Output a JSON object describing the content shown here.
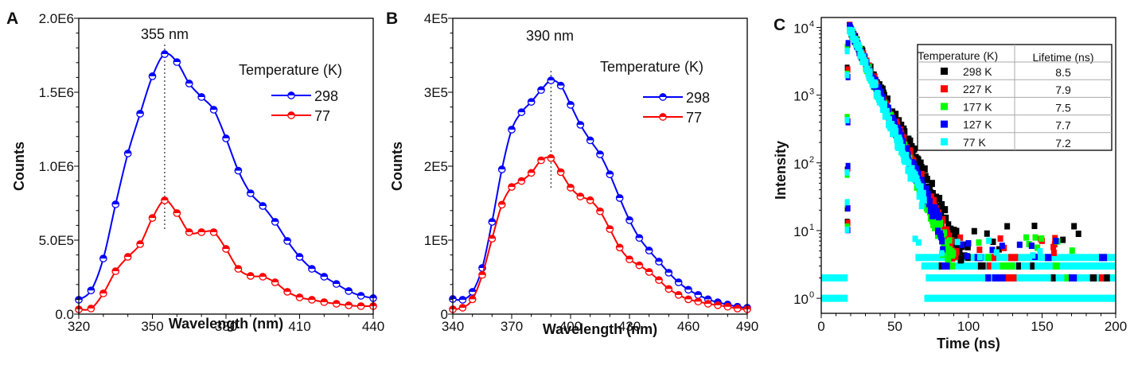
{
  "chart_data": [
    {
      "panel": "A",
      "type": "line",
      "title": "",
      "xlabel": "Wavelength (nm)",
      "ylabel": "Counts",
      "xlim": [
        320,
        440
      ],
      "ylim": [
        0,
        2000000
      ],
      "xticks": [
        320,
        350,
        380,
        410,
        440
      ],
      "yticks": [
        0,
        500000,
        1000000,
        1500000,
        2000000
      ],
      "ytick_labels": [
        "0.0",
        "5.0E5",
        "1.0E6",
        "1.5E6",
        "2.0E6"
      ],
      "annotation": {
        "text": "355 nm",
        "x": 355
      },
      "legend_title": "Temperature (K)",
      "legend_position": "top-right",
      "x": [
        320,
        325,
        330,
        335,
        340,
        345,
        350,
        355,
        360,
        365,
        370,
        375,
        380,
        385,
        390,
        395,
        400,
        405,
        410,
        415,
        420,
        425,
        430,
        435,
        440
      ],
      "series": [
        {
          "name": "298",
          "color": "#0000ff",
          "values": [
            97000,
            160000,
            376000,
            742000,
            1086000,
            1355000,
            1608000,
            1758000,
            1704000,
            1559000,
            1468000,
            1382000,
            1188000,
            970000,
            817000,
            731000,
            624000,
            495000,
            387000,
            306000,
            253000,
            204000,
            156000,
            124000,
            108000
          ]
        },
        {
          "name": "77",
          "color": "#ff0000",
          "values": [
            32000,
            38000,
            140000,
            290000,
            387000,
            473000,
            650000,
            769000,
            683000,
            554000,
            554000,
            554000,
            441000,
            306000,
            258000,
            253000,
            215000,
            151000,
            113000,
            97000,
            81000,
            70000,
            59000,
            54000,
            54000
          ]
        }
      ]
    },
    {
      "panel": "B",
      "type": "line",
      "title": "",
      "xlabel": "Wavelength (nm)",
      "ylabel": "Counts",
      "xlim": [
        340,
        490
      ],
      "ylim": [
        0,
        400000
      ],
      "xticks": [
        340,
        370,
        400,
        430,
        460,
        490
      ],
      "yticks": [
        0,
        100000,
        200000,
        300000,
        400000
      ],
      "ytick_labels": [
        "0",
        "1E5",
        "2E5",
        "3E5",
        "4E5"
      ],
      "annotation": {
        "text": "390 nm",
        "x": 390
      },
      "legend_title": "Temperature (K)",
      "legend_position": "top-right",
      "x": [
        340,
        345,
        350,
        355,
        360,
        365,
        370,
        375,
        380,
        385,
        390,
        395,
        400,
        405,
        410,
        415,
        420,
        425,
        430,
        435,
        440,
        445,
        450,
        455,
        460,
        465,
        470,
        475,
        480,
        485,
        490
      ],
      "series": [
        {
          "name": "298",
          "color": "#0000ff",
          "values": [
            20400,
            19400,
            30100,
            62400,
            124700,
            195700,
            249500,
            273000,
            287000,
            303000,
            316000,
            309000,
            283000,
            256000,
            235000,
            216000,
            189000,
            157000,
            127000,
            103000,
            86000,
            71000,
            56000,
            43000,
            33000,
            26000,
            20000,
            16000,
            13000,
            10000,
            8600
          ]
        },
        {
          "name": "77",
          "color": "#ff0000",
          "values": [
            6500,
            8600,
            20000,
            53000,
            102000,
            148000,
            172000,
            180000,
            191000,
            208000,
            211000,
            192000,
            171000,
            159000,
            154000,
            139000,
            115000,
            90000,
            74000,
            66000,
            57000,
            46000,
            34000,
            26000,
            20000,
            17000,
            14000,
            12000,
            10000,
            7500,
            6500
          ]
        }
      ]
    },
    {
      "panel": "C",
      "type": "scatter",
      "title": "",
      "xlabel": "Time (ns)",
      "ylabel": "Intensity",
      "xlim": [
        0,
        200
      ],
      "ylim": [
        0.6,
        14000
      ],
      "yscale": "log",
      "xticks": [
        0,
        50,
        100,
        150,
        200
      ],
      "yticks": [
        1,
        10,
        100,
        1000,
        10000
      ],
      "ytick_labels": [
        "10",
        "10",
        "10",
        "10",
        "10"
      ],
      "ytick_exponents": [
        "0",
        "1",
        "2",
        "3",
        "4"
      ],
      "peak_time_ns": 19,
      "peak_intensity": 10000,
      "legend_position": "top-right",
      "table": {
        "headers": [
          "Temperature (K)",
          "Lifetime (ns)"
        ],
        "rows": [
          {
            "temperature": "298 K",
            "lifetime": "8.5",
            "color": "#000000"
          },
          {
            "temperature": "227 K",
            "lifetime": "7.9",
            "color": "#ff0000"
          },
          {
            "temperature": "177 K",
            "lifetime": "7.5",
            "color": "#00ff00"
          },
          {
            "temperature": "127 K",
            "lifetime": "7.7",
            "color": "#0000ff"
          },
          {
            "temperature": "77 K",
            "lifetime": "7.2",
            "color": "#00ffff"
          }
        ]
      },
      "series": [
        {
          "name": "298 K",
          "color": "#000000",
          "lifetime_ns": 8.5,
          "decay_end_ns": 100
        },
        {
          "name": "227 K",
          "color": "#ff0000",
          "lifetime_ns": 7.9,
          "decay_end_ns": 95
        },
        {
          "name": "177 K",
          "color": "#00ff00",
          "lifetime_ns": 7.5,
          "decay_end_ns": 90
        },
        {
          "name": "127 K",
          "color": "#0000ff",
          "lifetime_ns": 7.7,
          "decay_end_ns": 82
        },
        {
          "name": "77 K",
          "color": "#00ffff",
          "lifetime_ns": 7.2,
          "decay_end_ns": 70
        }
      ],
      "noise_floor_levels": [
        1,
        2,
        3,
        4
      ]
    }
  ]
}
